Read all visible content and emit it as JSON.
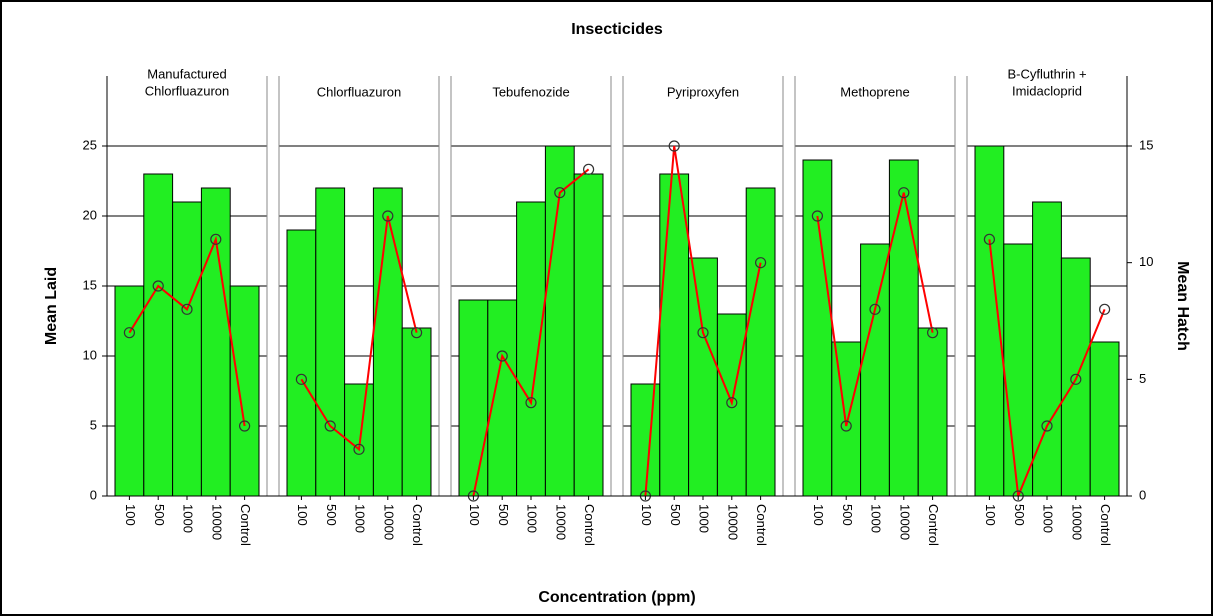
{
  "chart_data": {
    "type": "bar",
    "title": "Insecticides",
    "x_label": "Concentration (ppm)",
    "y_label": "Mean Laid",
    "y2_label": "Mean Hatch",
    "categories": [
      "100",
      "500",
      "1000",
      "10000",
      "Control"
    ],
    "ylim": [
      0,
      30
    ],
    "yticks": [
      0,
      5,
      10,
      15,
      20,
      25
    ],
    "y2lim": [
      0,
      18
    ],
    "y2ticks": [
      0,
      5,
      10,
      15
    ],
    "grid": true,
    "facets": [
      {
        "title": [
          "Manufactured",
          "Chlorfluazuron"
        ],
        "series": [
          {
            "type": "bar",
            "color": "#22ee22",
            "values": [
              15,
              23,
              21,
              22,
              15
            ]
          },
          {
            "type": "line",
            "axis": "y2",
            "color": "#ff0000",
            "values": [
              7,
              9,
              8,
              11,
              3
            ]
          }
        ]
      },
      {
        "title": [
          "Chlorfluazuron"
        ],
        "series": [
          {
            "type": "bar",
            "color": "#22ee22",
            "values": [
              19,
              22,
              8,
              22,
              12
            ]
          },
          {
            "type": "line",
            "axis": "y2",
            "color": "#ff0000",
            "values": [
              5,
              3,
              2,
              12,
              7
            ]
          }
        ]
      },
      {
        "title": [
          "Tebufenozide"
        ],
        "series": [
          {
            "type": "bar",
            "color": "#22ee22",
            "values": [
              14,
              14,
              21,
              25,
              23
            ]
          },
          {
            "type": "line",
            "axis": "y2",
            "color": "#ff0000",
            "values": [
              0,
              6,
              4,
              13,
              14
            ]
          }
        ]
      },
      {
        "title": [
          "Pyriproxyfen"
        ],
        "series": [
          {
            "type": "bar",
            "color": "#22ee22",
            "values": [
              8,
              23,
              17,
              13,
              22
            ]
          },
          {
            "type": "line",
            "axis": "y2",
            "color": "#ff0000",
            "values": [
              0,
              15,
              7,
              4,
              10
            ]
          }
        ]
      },
      {
        "title": [
          "Methoprene"
        ],
        "series": [
          {
            "type": "bar",
            "color": "#22ee22",
            "values": [
              24,
              11,
              18,
              24,
              12
            ]
          },
          {
            "type": "line",
            "axis": "y2",
            "color": "#ff0000",
            "values": [
              12,
              3,
              8,
              13,
              7
            ]
          }
        ]
      },
      {
        "title": [
          "B-Cyfluthrin +",
          "Imidacloprid"
        ],
        "series": [
          {
            "type": "bar",
            "color": "#22ee22",
            "values": [
              25,
              18,
              21,
              17,
              11
            ]
          },
          {
            "type": "line",
            "axis": "y2",
            "color": "#ff0000",
            "values": [
              11,
              0,
              3,
              5,
              8
            ]
          }
        ]
      }
    ]
  }
}
